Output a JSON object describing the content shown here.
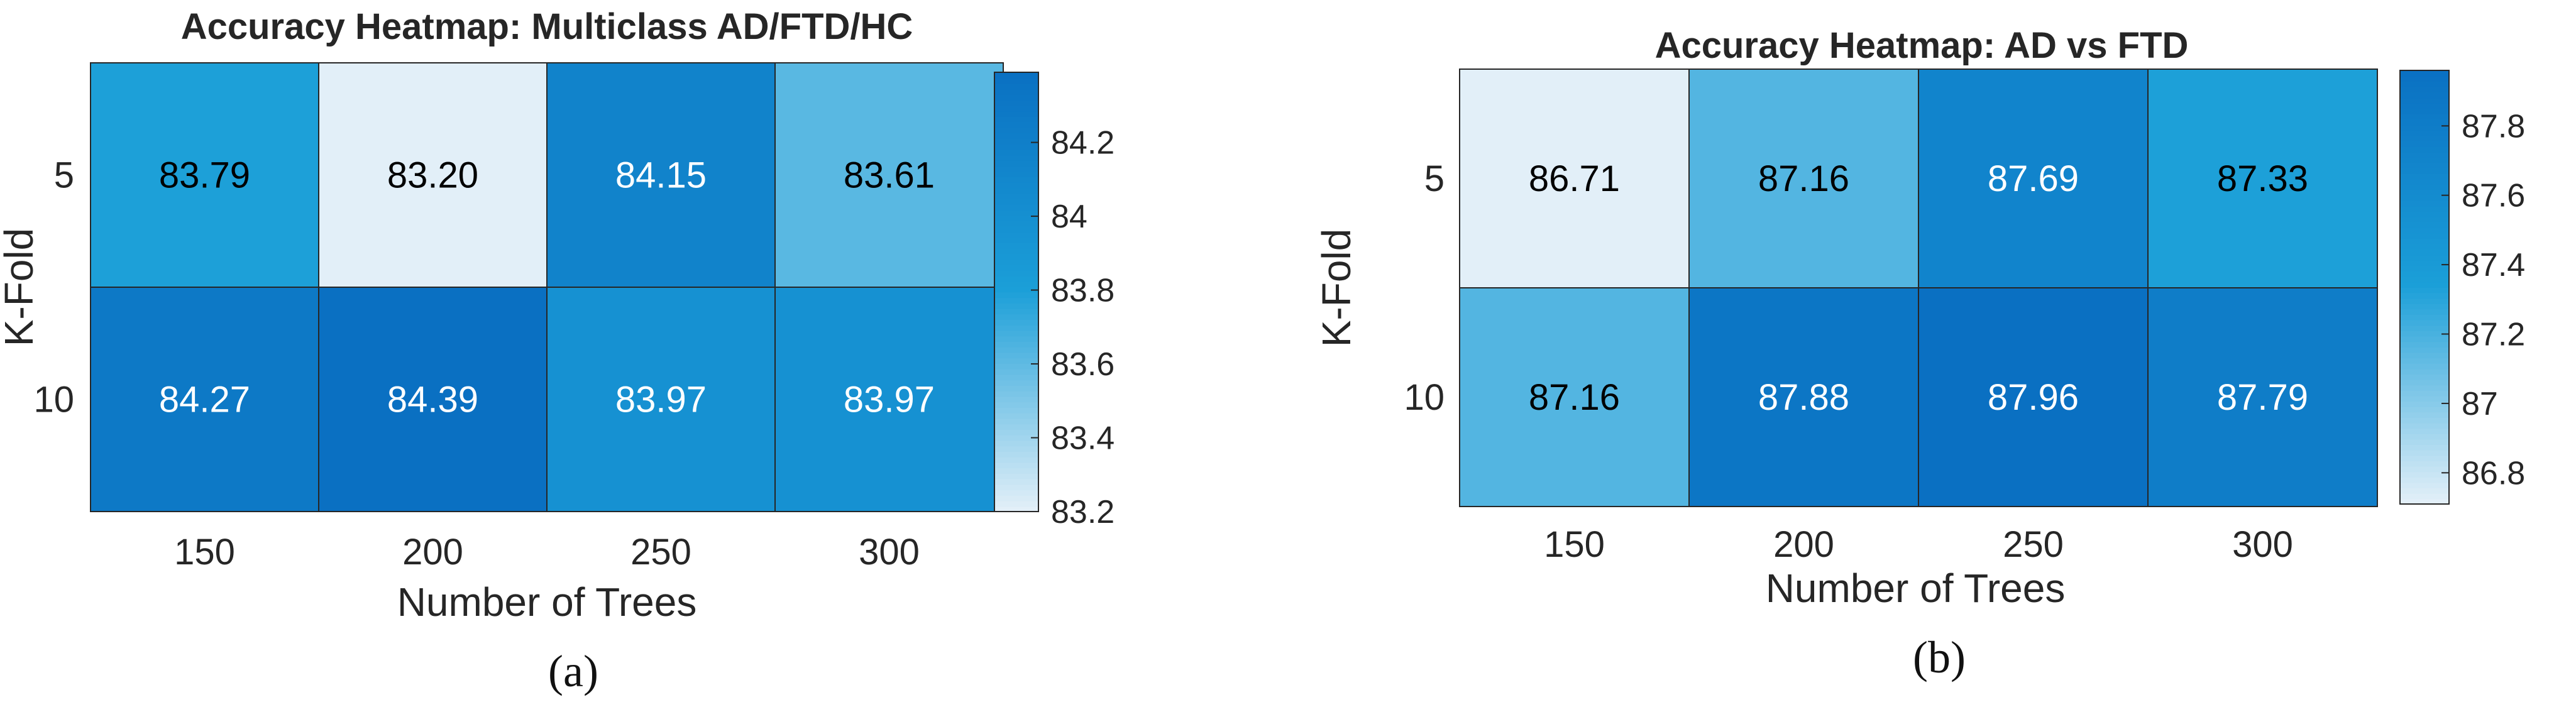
{
  "chart_data": [
    {
      "type": "heatmap",
      "panel_label": "(a)",
      "title": "Accuracy Heatmap: Multiclass AD/FTD/HC",
      "xlabel": "Number of Trees",
      "ylabel": "K-Fold",
      "x": [
        "150",
        "200",
        "250",
        "300"
      ],
      "y": [
        "5",
        "10"
      ],
      "values": [
        [
          83.79,
          83.2,
          84.15,
          83.61
        ],
        [
          84.27,
          84.39,
          83.97,
          83.97
        ]
      ],
      "value_labels": [
        [
          "83.79",
          "83.20",
          "84.15",
          "83.61"
        ],
        [
          "84.27",
          "84.39",
          "83.97",
          "83.97"
        ]
      ],
      "colorbar": {
        "range": [
          83.2,
          84.39
        ],
        "ticks": [
          83.2,
          83.4,
          83.6,
          83.8,
          84,
          84.2
        ],
        "tick_labels": [
          "83.2",
          "83.4",
          "83.6",
          "83.8",
          "84",
          "84.2"
        ]
      },
      "colors": {
        "low": "#e2eff8",
        "mid": "#1b9fd8",
        "high": "#0a70c2",
        "dark_text": "#000000",
        "light_text": "#ffffff"
      }
    },
    {
      "type": "heatmap",
      "panel_label": "(b)",
      "title": "Accuracy Heatmap: AD vs FTD",
      "xlabel": "Number of Trees",
      "ylabel": "K-Fold",
      "x": [
        "150",
        "200",
        "250",
        "300"
      ],
      "y": [
        "5",
        "10"
      ],
      "values": [
        [
          86.71,
          87.16,
          87.69,
          87.33
        ],
        [
          87.16,
          87.88,
          87.96,
          87.79
        ]
      ],
      "value_labels": [
        [
          "86.71",
          "87.16",
          "87.69",
          "87.33"
        ],
        [
          "87.16",
          "87.88",
          "87.96",
          "87.79"
        ]
      ],
      "colorbar": {
        "range": [
          86.71,
          87.96
        ],
        "ticks": [
          86.8,
          87,
          87.2,
          87.4,
          87.6,
          87.8
        ],
        "tick_labels": [
          "86.8",
          "87",
          "87.2",
          "87.4",
          "87.6",
          "87.8"
        ]
      },
      "colors": {
        "low": "#e2eff8",
        "mid": "#1b9fd8",
        "high": "#0a70c2",
        "dark_text": "#000000",
        "light_text": "#ffffff"
      }
    }
  ]
}
